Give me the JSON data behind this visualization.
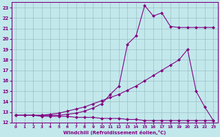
{
  "xlabel": "Windchill (Refroidissement éolien,°C)",
  "xlim": [
    -0.5,
    23.5
  ],
  "ylim": [
    12,
    23.5
  ],
  "yticks": [
    12,
    13,
    14,
    15,
    16,
    17,
    18,
    19,
    20,
    21,
    22,
    23
  ],
  "xticks": [
    0,
    1,
    2,
    3,
    4,
    5,
    6,
    7,
    8,
    9,
    10,
    11,
    12,
    13,
    14,
    15,
    16,
    17,
    18,
    19,
    20,
    21,
    22,
    23
  ],
  "bg_color": "#c2e8ec",
  "grid_color": "#9bbfc4",
  "line_color": "#800080",
  "curve1_x": [
    0,
    1,
    2,
    3,
    4,
    5,
    6,
    7,
    8,
    9,
    10,
    11,
    12,
    13,
    14,
    15,
    16,
    17,
    18,
    19,
    20,
    21,
    22,
    23
  ],
  "curve1_y": [
    12.7,
    12.7,
    12.7,
    12.6,
    12.6,
    12.6,
    12.6,
    12.5,
    12.5,
    12.5,
    12.4,
    12.4,
    12.4,
    12.3,
    12.3,
    12.2,
    12.2,
    12.2,
    12.2,
    12.2,
    12.2,
    12.2,
    12.2,
    12.2
  ],
  "curve2_x": [
    0,
    1,
    2,
    3,
    4,
    5,
    6,
    7,
    8,
    9,
    10,
    11,
    12,
    13,
    14,
    15,
    16,
    17,
    18,
    19,
    20,
    21,
    22,
    23
  ],
  "curve2_y": [
    12.7,
    12.7,
    12.7,
    12.7,
    12.8,
    12.9,
    13.1,
    13.3,
    13.5,
    13.8,
    14.1,
    14.4,
    14.7,
    15.1,
    15.5,
    16.0,
    16.5,
    17.0,
    17.5,
    18.0,
    19.0,
    15.0,
    13.5,
    12.2
  ],
  "curve3_x": [
    0,
    1,
    2,
    3,
    4,
    5,
    6,
    7,
    8,
    9,
    10,
    11,
    12,
    13,
    14,
    15,
    16,
    17,
    18,
    19,
    20,
    21,
    22,
    23
  ],
  "curve3_y": [
    12.7,
    12.7,
    12.7,
    12.7,
    12.7,
    12.7,
    12.8,
    12.9,
    13.1,
    13.4,
    13.8,
    14.7,
    15.5,
    19.5,
    20.3,
    23.2,
    22.2,
    22.5,
    21.2,
    21.1,
    21.1,
    21.1,
    21.1,
    21.1
  ]
}
